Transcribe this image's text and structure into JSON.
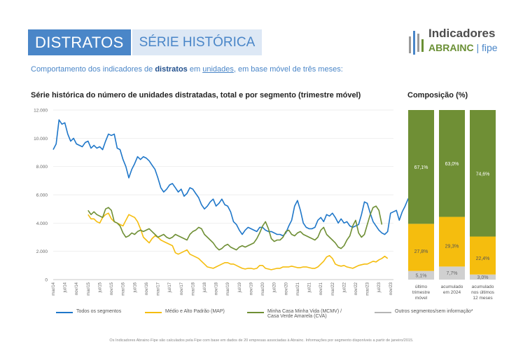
{
  "header": {
    "title": "DISTRATOS",
    "subtitle_box": "SÉRIE HISTÓRICA"
  },
  "logo": {
    "line1": "Indicadores",
    "line2a": "ABRAINC",
    "line2b": " | fipe"
  },
  "intro": {
    "pre": "Comportamento dos indicadores de ",
    "bold": "distratos",
    "mid": " em ",
    "underlined": "unidades",
    "post": ", em base móvel de três meses:"
  },
  "footnote": "Os Indicadores Abrainc-Fipe são calculados pela Fipe com base em dados de 20 empresas associadas à Abrainc. Informações por segmento disponíveis a partir de janeiro/2015.",
  "colors": {
    "total": "#1f77c9",
    "map": "#f5bd0e",
    "mcmv": "#6f8f35",
    "outros": "#b5b5b5"
  },
  "chart_data": [
    {
      "type": "line",
      "title": "Série histórica do número de unidades distratadas, total e por segmento (trimestre móvel)",
      "ylim": [
        0,
        12000
      ],
      "y_ticks": [
        0,
        2000,
        4000,
        6000,
        8000,
        10000,
        12000
      ],
      "y_tick_labels": [
        "0",
        "2.000",
        "4.000",
        "6.000",
        "8.000",
        "10.000",
        "12.000"
      ],
      "x_start": "mar/14",
      "x_tick_labels": [
        "mar/14",
        "jul/14",
        "nov/14",
        "mar/15",
        "jul/15",
        "nov/15",
        "mar/16",
        "jul/16",
        "nov/16",
        "mar/17",
        "jul/17",
        "nov/17",
        "mar/18",
        "jul/18",
        "nov/18",
        "mar/19",
        "jul/19",
        "nov/19",
        "mar/20",
        "jul/20",
        "nov/20",
        "mar/21",
        "jul/21",
        "nov/21",
        "mar/22",
        "jul/22",
        "nov/22",
        "mar/23",
        "jul/23",
        "nov/23"
      ],
      "legend": "bottom",
      "series": [
        {
          "name": "Todos os segmentos",
          "color": "#1f77c9",
          "start_index": 0,
          "values": [
            9200,
            9600,
            11300,
            11000,
            11100,
            10300,
            9800,
            10000,
            9600,
            9500,
            9400,
            9700,
            9800,
            9300,
            9500,
            9300,
            9400,
            9200,
            9800,
            10300,
            10200,
            10300,
            9300,
            9200,
            8500,
            8000,
            7200,
            7800,
            8200,
            8700,
            8500,
            8700,
            8600,
            8400,
            8100,
            7800,
            7200,
            6500,
            6200,
            6400,
            6700,
            6800,
            6500,
            6200,
            6400,
            5900,
            6100,
            6500,
            6400,
            6100,
            5800,
            5300,
            5000,
            5200,
            5500,
            5700,
            5200,
            5400,
            5700,
            5300,
            5200,
            4800,
            4100,
            3900,
            3500,
            3200,
            3500,
            3700,
            3600,
            3500,
            3400,
            3700,
            3700,
            3500,
            3400,
            3400,
            3300,
            3200,
            3200,
            3100,
            3300,
            3800,
            4200,
            5200,
            5600,
            4900,
            4000,
            3700,
            3600,
            3600,
            3700,
            4200,
            4400,
            4100,
            4600,
            4500,
            4700,
            4400,
            4000,
            4300,
            4000,
            4100,
            3800,
            3700,
            3800,
            3900,
            4600,
            5500,
            5400,
            4700,
            4100,
            3800,
            3500,
            3300,
            3200,
            3400,
            4700,
            4800,
            4900,
            4200,
            4800,
            5200,
            5700,
            6000,
            6500,
            6800,
            6500,
            5700
          ]
        },
        {
          "name": "Médio e Alto Padrão (MAP)",
          "color": "#f5bd0e",
          "start_index": 12,
          "values": [
            4600,
            4300,
            4300,
            4100,
            4000,
            4400,
            4600,
            4700,
            4300,
            4100,
            4000,
            3900,
            3800,
            4200,
            4600,
            4500,
            4400,
            4100,
            3600,
            3000,
            2800,
            2600,
            2900,
            3100,
            3000,
            2800,
            2700,
            2600,
            2500,
            2400,
            1900,
            1800,
            1900,
            2000,
            2100,
            1800,
            1700,
            1600,
            1500,
            1300,
            1100,
            900,
            850,
            800,
            900,
            1000,
            1100,
            1200,
            1200,
            1100,
            1100,
            1000,
            900,
            800,
            750,
            800,
            800,
            750,
            800,
            1000,
            1000,
            800,
            750,
            700,
            750,
            800,
            800,
            900,
            900,
            900,
            950,
            900,
            850,
            850,
            900,
            900,
            850,
            800,
            800,
            900,
            1100,
            1300,
            1600,
            1700,
            1500,
            1100,
            1000,
            950,
            1000,
            900,
            850,
            800,
            900,
            1000,
            1050,
            1100,
            1100,
            1200,
            1300,
            1250,
            1400,
            1500,
            1650,
            1500
          ]
        },
        {
          "name": "Minha Casa Minha Vida (MCMV) / Casa Verde Amarela (CVA)",
          "color": "#6f8f35",
          "start_index": 12,
          "values": [
            4900,
            4600,
            4800,
            4600,
            4500,
            4400,
            5000,
            5100,
            4900,
            4100,
            4000,
            3800,
            3300,
            3000,
            3100,
            3300,
            3200,
            3400,
            3500,
            3400,
            3500,
            3600,
            3400,
            3200,
            3000,
            3100,
            3200,
            3000,
            2900,
            3000,
            3200,
            3100,
            3000,
            2900,
            2800,
            3200,
            3400,
            3500,
            3700,
            3600,
            3200,
            3000,
            2800,
            2600,
            2300,
            2100,
            2200,
            2400,
            2500,
            2300,
            2200,
            2100,
            2300,
            2400,
            2300,
            2400,
            2500,
            2600,
            2900,
            3300,
            3800,
            4100,
            3600,
            2900,
            2700,
            2800,
            2800,
            3000,
            3400,
            3500,
            3200,
            3100,
            3300,
            3400,
            3200,
            3100,
            3000,
            2900,
            2800,
            3000,
            3500,
            3700,
            3200,
            3000,
            2800,
            2600,
            2300,
            2200,
            2400,
            2800,
            3100,
            3800,
            4200,
            3300,
            3000,
            3200,
            3900,
            4600,
            5100,
            5200,
            4900,
            3900
          ]
        },
        {
          "name": "Outros segmentos/sem informação*",
          "color": "#b5b5b5",
          "start_index": 12,
          "values": []
        }
      ]
    },
    {
      "type": "bar",
      "stacked": true,
      "title": "Composição (%)",
      "categories": [
        "último trimestre móvel",
        "acumulado em 2024",
        "acumulado nos últimos 12 meses"
      ],
      "series": [
        {
          "name": "Outros segmentos/sem informação*",
          "color": "#d0d0d0",
          "values": [
            5.1,
            7.7,
            3.0
          ],
          "labels": [
            "5,1%",
            "7,7%",
            "3,0%"
          ]
        },
        {
          "name": "Médio e Alto Padrão (MAP)",
          "color": "#f5bd0e",
          "values": [
            27.8,
            29.3,
            22.4
          ],
          "labels": [
            "27,8%",
            "29,3%",
            "22,4%"
          ]
        },
        {
          "name": "Minha Casa Minha Vida (MCMV) / Casa Verde Amarela (CVA)",
          "color": "#6f8f35",
          "values": [
            67.1,
            63.0,
            74.6
          ],
          "labels": [
            "67,1%",
            "63,0%",
            "74,6%"
          ]
        }
      ]
    }
  ]
}
